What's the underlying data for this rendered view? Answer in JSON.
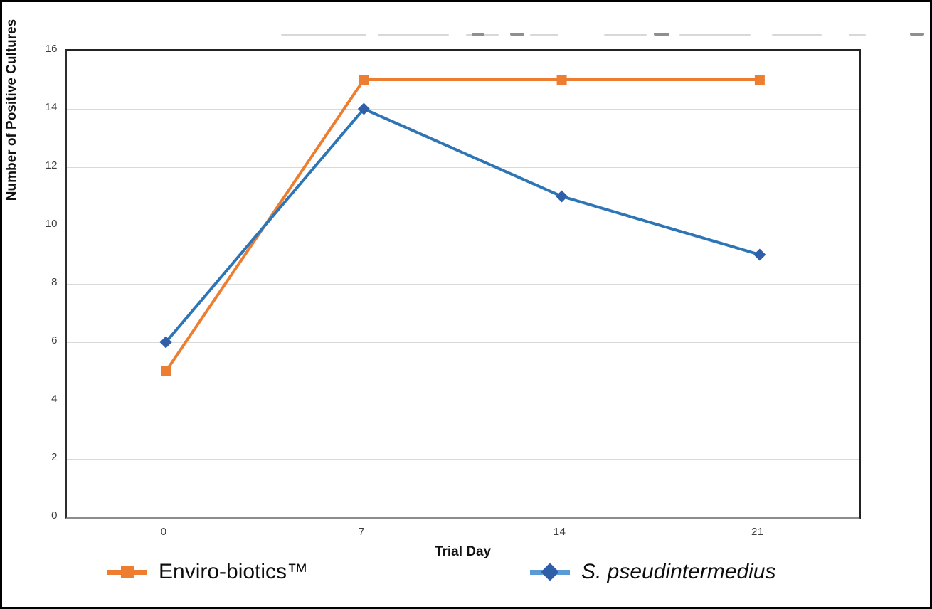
{
  "frame": {
    "background": "#ffffff",
    "border_color": "#000000",
    "note_title": "chart title present but erased/illegible (only faint letter-bottom smudges visible)"
  },
  "chart_data": {
    "type": "line",
    "x_categories": [
      "0",
      "7",
      "14",
      "21"
    ],
    "series": [
      {
        "name": "Enviro-biotics™",
        "values": [
          5,
          15,
          15,
          15
        ],
        "color": "#ED7D31",
        "marker": "square",
        "marker_color": "#ED7D31",
        "legend_line_color": "#ED7D31",
        "name_style": "normal"
      },
      {
        "name": "S. pseudintermedius",
        "values": [
          6,
          14,
          11,
          9
        ],
        "color": "#2E75B6",
        "marker": "diamond",
        "marker_color": "#2E5FA8",
        "legend_line_color": "#5B9BD5",
        "name_style": "italic"
      }
    ],
    "xlabel": "Trial Day",
    "ylabel": "Number of Positive Cultures",
    "ylim": [
      0,
      16
    ],
    "ytick_step": 2,
    "grid": "horizontal",
    "gridline_color": "#D9D9D9",
    "legend_position": "bottom"
  },
  "axes_style": {
    "tick_label_color": "#3d3d3d",
    "axis_line_color": "#2e2e2e",
    "bottom_axis_color": "#8c8c8c"
  }
}
